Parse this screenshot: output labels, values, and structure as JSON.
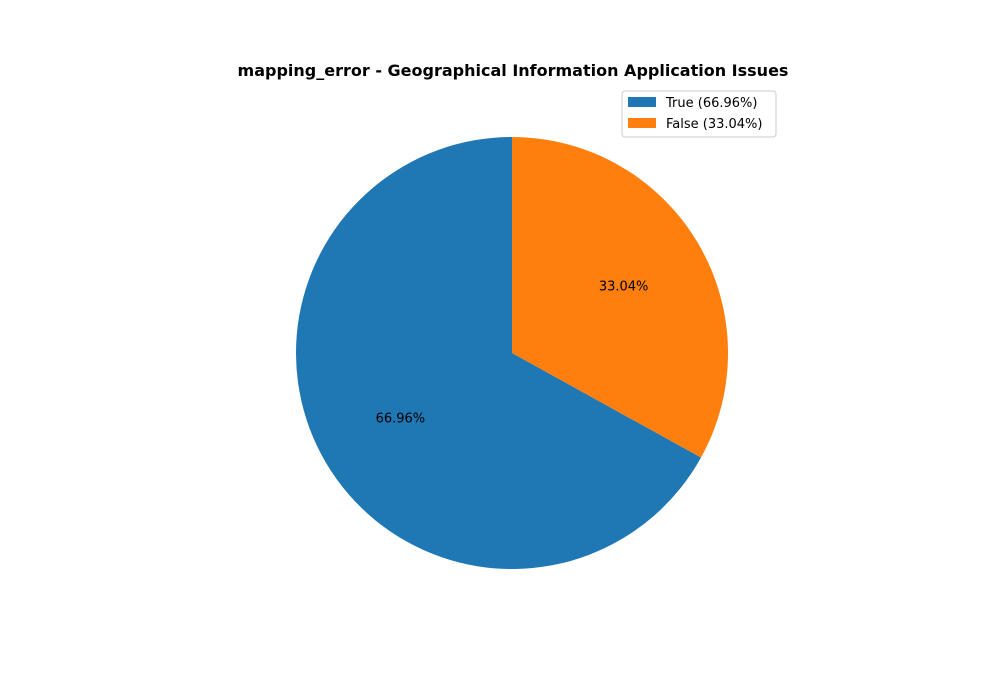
{
  "chart_data": {
    "type": "pie",
    "title": "mapping_error - Geographical Information Application Issues",
    "categories": [
      "True",
      "False"
    ],
    "values": [
      66.96,
      33.04
    ],
    "slice_labels": [
      "66.96%",
      "33.04%"
    ],
    "legend_entries": [
      "True (66.96%)",
      "False (33.04%)"
    ],
    "colors": [
      "#1f77b4",
      "#ff7f0e"
    ],
    "start_angle_deg": 90,
    "direction": "counterclockwise",
    "legend_position": "upper-right"
  }
}
